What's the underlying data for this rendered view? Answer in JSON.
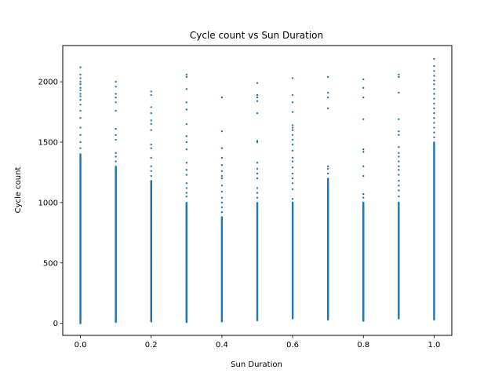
{
  "chart_data": {
    "type": "scatter",
    "title": "Cycle count vs Sun Duration",
    "xlabel": "Sun Duration",
    "ylabel": "Cycle count",
    "xlim": [
      -0.05,
      1.05
    ],
    "ylim": [
      -100,
      2300
    ],
    "xticks": [
      0.0,
      0.2,
      0.4,
      0.6,
      0.8,
      1.0
    ],
    "xtick_labels": [
      "0.0",
      "0.2",
      "0.4",
      "0.6",
      "0.8",
      "1.0"
    ],
    "yticks": [
      0,
      500,
      1000,
      1500,
      2000
    ],
    "ytick_labels": [
      "0",
      "500",
      "1000",
      "1500",
      "2000"
    ],
    "grid": false,
    "marker_color": "#1f77b4",
    "columns": [
      {
        "x": 0.0,
        "dense": [
          0,
          1400
        ],
        "sparse": [
          1450,
          1500,
          1560,
          1620,
          1700,
          1760,
          1810,
          1850,
          1880,
          1900,
          1930,
          1950,
          1980,
          2000,
          2030,
          2060,
          2120
        ]
      },
      {
        "x": 0.1,
        "dense": [
          10,
          1300
        ],
        "sparse": [
          1340,
          1380,
          1410,
          1520,
          1560,
          1610,
          1760,
          1830,
          1870,
          1900,
          1960,
          2000
        ]
      },
      {
        "x": 0.2,
        "dense": [
          15,
          1180
        ],
        "sparse": [
          1220,
          1260,
          1300,
          1370,
          1450,
          1480,
          1600,
          1650,
          1680,
          1740,
          1790,
          1890,
          1920
        ]
      },
      {
        "x": 0.3,
        "dense": [
          10,
          1000
        ],
        "sparse": [
          1050,
          1080,
          1120,
          1160,
          1230,
          1270,
          1330,
          1440,
          1500,
          1550,
          1650,
          1770,
          1830,
          1940,
          2040,
          2060
        ]
      },
      {
        "x": 0.4,
        "dense": [
          15,
          880
        ],
        "sparse": [
          920,
          960,
          1000,
          1040,
          1090,
          1140,
          1200,
          1220,
          1260,
          1310,
          1370,
          1450,
          1590,
          1870
        ]
      },
      {
        "x": 0.5,
        "dense": [
          25,
          1000
        ],
        "sparse": [
          1040,
          1080,
          1120,
          1200,
          1240,
          1280,
          1330,
          1500,
          1510,
          1740,
          1840,
          1870,
          1890,
          1990
        ]
      },
      {
        "x": 0.6,
        "dense": [
          40,
          1000
        ],
        "sparse": [
          1030,
          1110,
          1160,
          1200,
          1240,
          1290,
          1340,
          1370,
          1430,
          1480,
          1520,
          1560,
          1600,
          1620,
          1640,
          1750,
          1830,
          1890,
          2030
        ]
      },
      {
        "x": 0.7,
        "dense": [
          30,
          1200
        ],
        "sparse": [
          1240,
          1280,
          1300,
          1780,
          1870,
          1910,
          2040
        ]
      },
      {
        "x": 0.8,
        "dense": [
          20,
          1000
        ],
        "sparse": [
          1040,
          1070,
          1220,
          1300,
          1420,
          1440,
          1690,
          1870,
          1950,
          2020
        ]
      },
      {
        "x": 0.9,
        "dense": [
          40,
          1000
        ],
        "sparse": [
          1050,
          1100,
          1140,
          1180,
          1230,
          1270,
          1300,
          1340,
          1380,
          1410,
          1460,
          1560,
          1590,
          1690,
          1910,
          2040,
          2060
        ]
      },
      {
        "x": 1.0,
        "dense": [
          30,
          1500
        ],
        "sparse": [
          1540,
          1580,
          1620,
          1660,
          1700,
          1740,
          1780,
          1820,
          1860,
          1900,
          1940,
          1980,
          2010,
          2050,
          2090,
          2130,
          2190
        ]
      }
    ]
  }
}
